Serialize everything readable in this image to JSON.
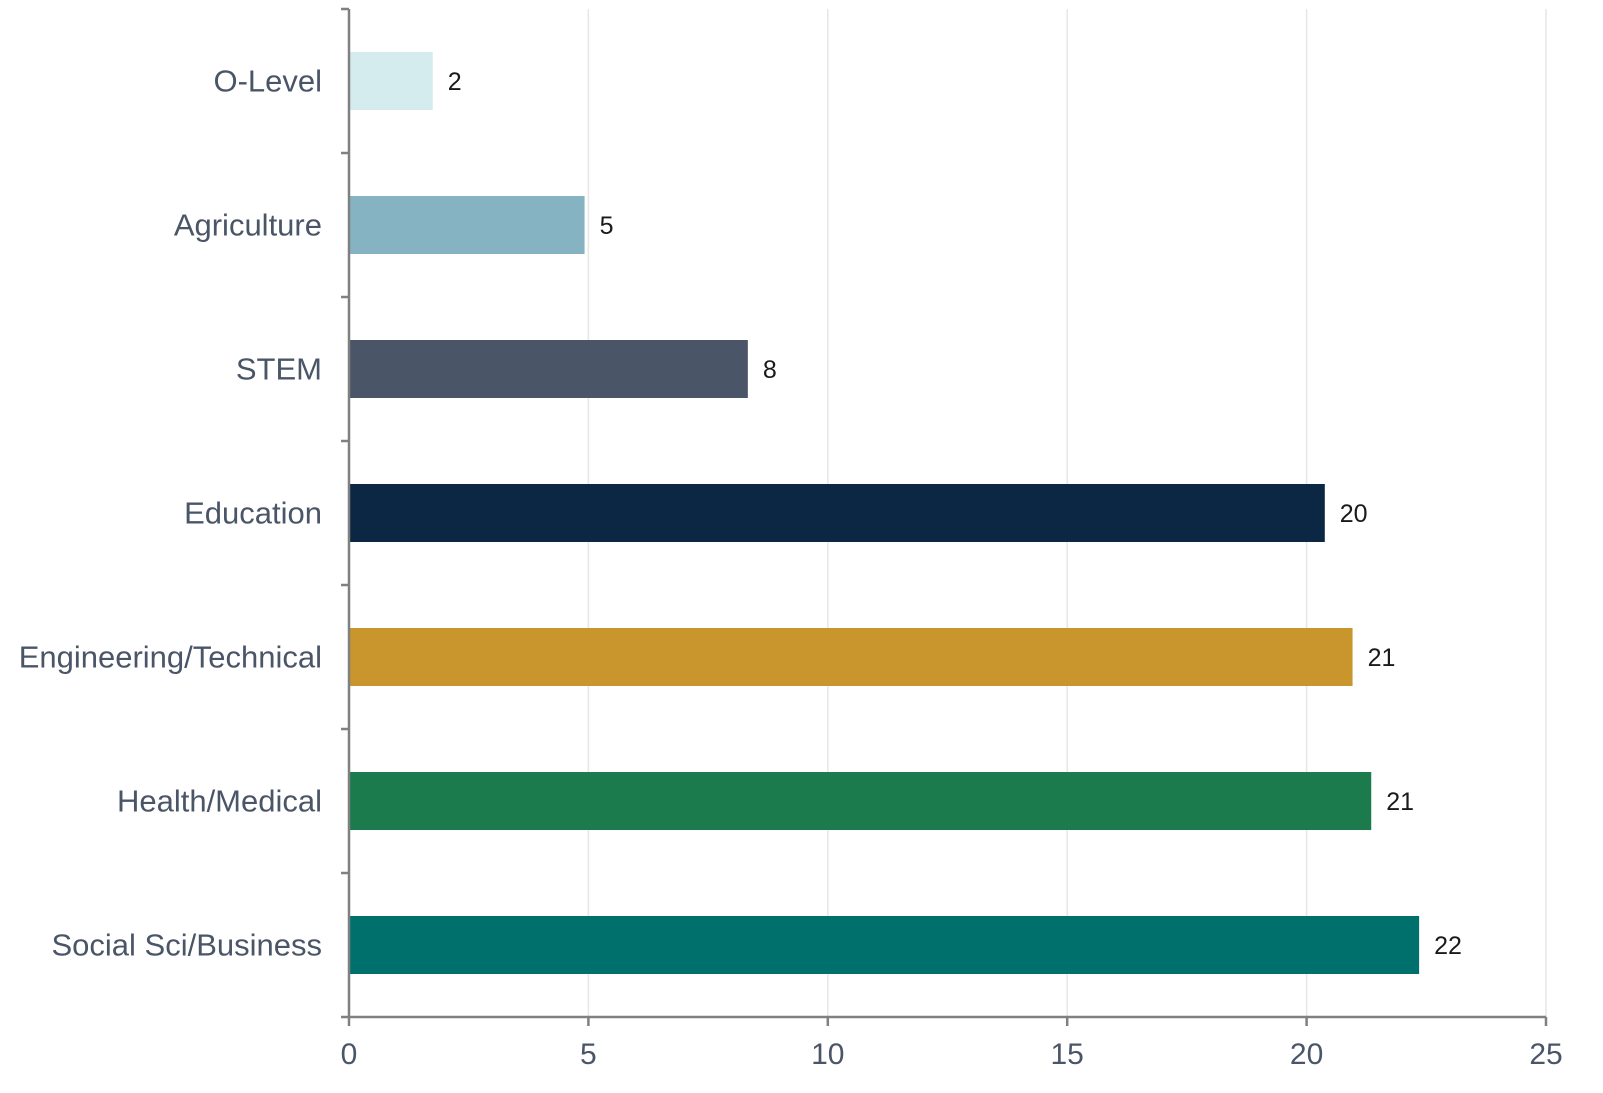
{
  "chart_data": {
    "type": "bar",
    "orientation": "horizontal",
    "title": "",
    "xlabel": "",
    "ylabel": "",
    "categories": [
      "O-Level",
      "Agriculture",
      "STEM",
      "Education",
      "Engineering/Technical",
      "Health/Medical",
      "Social Sci/Business"
    ],
    "values": [
      1.75,
      4.92,
      8.33,
      20.38,
      20.96,
      21.35,
      22.35
    ],
    "data_labels": [
      "2",
      "5",
      "8",
      "20",
      "21",
      "21",
      "22"
    ],
    "colors": [
      "#d5ecee",
      "#85b3c1",
      "#4a5568",
      "#0c2744",
      "#c8962c",
      "#1c7b4c",
      "#00706c"
    ],
    "xlim": [
      0,
      25
    ],
    "xticks": [
      0,
      5,
      10,
      15,
      20,
      25
    ],
    "xtick_labels": [
      "0",
      "5",
      "10",
      "15",
      "20",
      "25"
    ],
    "grid": "vertical",
    "legend": "none"
  }
}
